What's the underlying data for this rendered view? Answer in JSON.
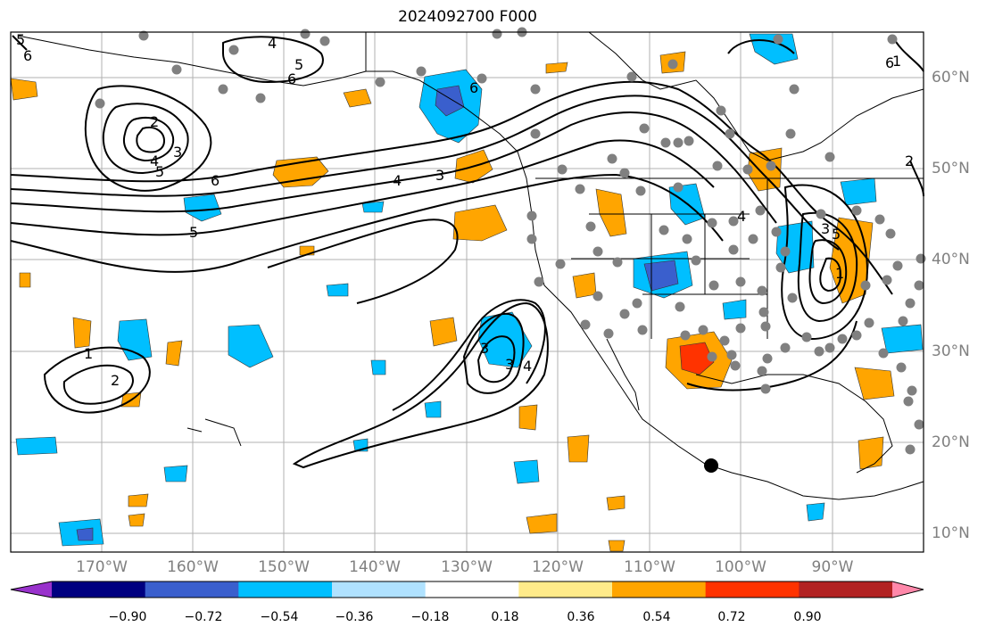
{
  "title": "2024092700 F000",
  "lat_labels": [
    "60°N",
    "50°N",
    "40°N",
    "30°N",
    "20°N",
    "10°N"
  ],
  "lon_labels": [
    "170°W",
    "160°W",
    "150°W",
    "140°W",
    "130°W",
    "120°W",
    "110°W",
    "100°W",
    "90°W"
  ],
  "contour_labels": [
    "5",
    "6",
    "4",
    "5",
    "6",
    "2",
    "3",
    "4",
    "5",
    "6",
    "5",
    "4",
    "3",
    "6",
    "1",
    "2",
    "3",
    "4",
    "5",
    "6",
    "3",
    "1",
    "2",
    "3",
    "4",
    "1"
  ],
  "colorbar": {
    "ticks": [
      "−0.90",
      "−0.72",
      "−0.54",
      "−0.36",
      "−0.18",
      "0.18",
      "0.36",
      "0.54",
      "0.72",
      "0.90"
    ],
    "colors": [
      "#9932cc",
      "#000080",
      "#3a5fcd",
      "#00bfff",
      "#b0e2ff",
      "#ffffff",
      "#ffeb8a",
      "#ffa500",
      "#ff3300",
      "#b22222",
      "#ff88aa"
    ]
  },
  "colors": {
    "land_dot": "#808080",
    "marker": "#000000",
    "grid": "#b0b0b0"
  }
}
